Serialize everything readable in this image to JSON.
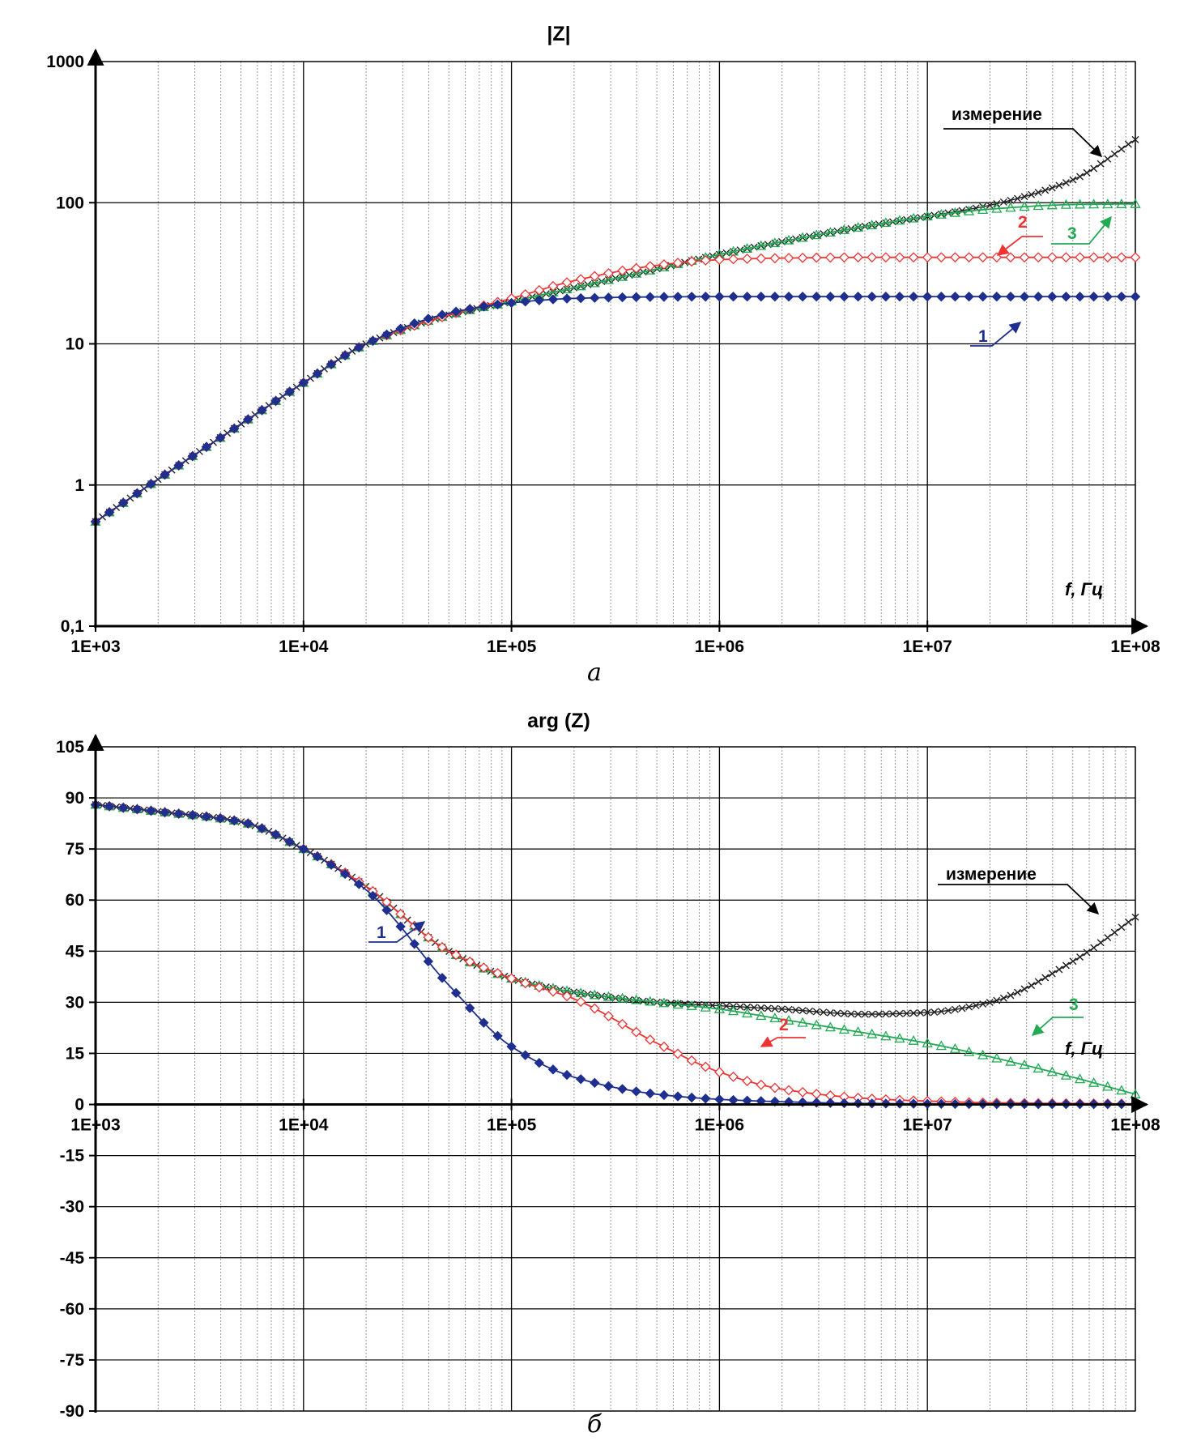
{
  "chart_data": [
    {
      "type": "line",
      "title": "|Z|",
      "caption": "а",
      "xlabel": "f, Гц",
      "x_scale": "log",
      "y_scale": "log",
      "xlim": [
        1000,
        100000000
      ],
      "ylim": [
        0.1,
        1000
      ],
      "x_ticks": [
        "1E+03",
        "1E+04",
        "1E+05",
        "1E+06",
        "1E+07",
        "1E+08"
      ],
      "y_ticks": [
        "0,1",
        "1",
        "10",
        "100",
        "1000"
      ],
      "grid": true,
      "x": [
        1000,
        2000,
        5000,
        10000,
        20000,
        50000,
        100000,
        200000,
        500000,
        1000000,
        2000000,
        5000000,
        10000000,
        20000000,
        50000000,
        100000000
      ],
      "series": [
        {
          "name": "1",
          "color": "#1f2f8f",
          "marker": "diamond-filled",
          "values": [
            0.55,
            1.1,
            2.7,
            5.3,
            10.0,
            16.5,
            19.5,
            21.0,
            21.5,
            21.6,
            21.6,
            21.6,
            21.6,
            21.6,
            21.6,
            21.6
          ]
        },
        {
          "name": "2",
          "color": "#ee3333",
          "marker": "diamond-open",
          "values": [
            0.55,
            1.1,
            2.7,
            5.3,
            10.0,
            16.0,
            21.0,
            28.0,
            36.0,
            39.5,
            40.5,
            41.0,
            41.0,
            41.0,
            41.0,
            41.0
          ]
        },
        {
          "name": "3",
          "color": "#22aa55",
          "marker": "triangle-open",
          "values": [
            0.55,
            1.1,
            2.7,
            5.3,
            10.0,
            16.0,
            20.0,
            25.0,
            34.0,
            43.0,
            53.0,
            68.0,
            80.0,
            90.0,
            97.0,
            98.0
          ]
        },
        {
          "name": "измерение",
          "color": "#222222",
          "marker": "cross",
          "values": [
            0.55,
            1.1,
            2.7,
            5.3,
            10.0,
            16.0,
            20.0,
            25.0,
            34.0,
            43.0,
            53.0,
            68.0,
            80.0,
            96.0,
            145.0,
            280.0
          ]
        }
      ],
      "annotations": [
        {
          "text": "измерение",
          "color": "#000000"
        },
        {
          "text": "1",
          "color": "#1f2f8f"
        },
        {
          "text": "2",
          "color": "#ee3333"
        },
        {
          "text": "3",
          "color": "#22aa55"
        }
      ]
    },
    {
      "type": "line",
      "title": "arg (Z)",
      "caption": "б",
      "xlabel": "f, Гц",
      "x_scale": "log",
      "y_scale": "linear",
      "xlim": [
        1000,
        100000000
      ],
      "ylim": [
        -90,
        105
      ],
      "x_ticks": [
        "1E+03",
        "1E+04",
        "1E+05",
        "1E+06",
        "1E+07",
        "1E+08"
      ],
      "y_ticks": [
        "105",
        "90",
        "75",
        "60",
        "45",
        "30",
        "15",
        "0",
        "-15",
        "-30",
        "-45",
        "-60",
        "-75",
        "-90"
      ],
      "grid": true,
      "x": [
        1000,
        2000,
        5000,
        10000,
        20000,
        50000,
        100000,
        200000,
        500000,
        1000000,
        2000000,
        5000000,
        10000000,
        20000000,
        50000000,
        100000000
      ],
      "series": [
        {
          "name": "1",
          "color": "#1f2f8f",
          "marker": "diamond-filled",
          "values": [
            88,
            86,
            83,
            75,
            63,
            35,
            17,
            8,
            3,
            1.5,
            0.8,
            0.3,
            0.2,
            0.1,
            0.1,
            0.1
          ]
        },
        {
          "name": "2",
          "color": "#ee3333",
          "marker": "diamond-open",
          "values": [
            88,
            86,
            83,
            75,
            64,
            45,
            37,
            31,
            18,
            9.5,
            4.5,
            1.8,
            1.0,
            0.5,
            0.3,
            0.2
          ]
        },
        {
          "name": "3",
          "color": "#22aa55",
          "marker": "triangle-open",
          "values": [
            88,
            86,
            83,
            75,
            64,
            45,
            37,
            33,
            30,
            28,
            25,
            21,
            18,
            14,
            8,
            3
          ]
        },
        {
          "name": "измерение",
          "color": "#222222",
          "marker": "cross",
          "values": [
            88,
            86,
            83,
            75,
            64,
            45,
            37,
            33,
            30,
            29,
            28,
            26.5,
            27,
            30,
            42,
            55
          ]
        }
      ],
      "annotations": [
        {
          "text": "измерение",
          "color": "#000000"
        },
        {
          "text": "1",
          "color": "#1f2f8f"
        },
        {
          "text": "2",
          "color": "#ee3333"
        },
        {
          "text": "3",
          "color": "#22aa55"
        }
      ]
    }
  ]
}
